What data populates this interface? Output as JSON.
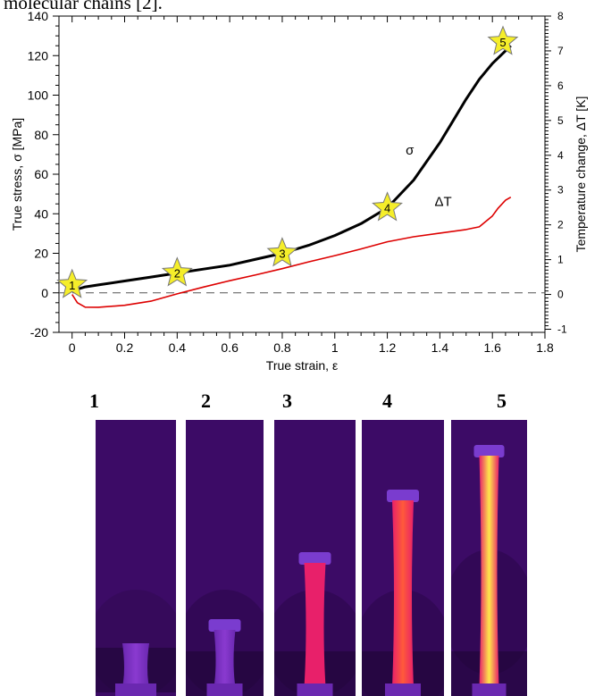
{
  "header_text": "molecular chains [2].",
  "chart_data": {
    "type": "line",
    "xlabel": "True strain, ε",
    "ylabel": "True stress, σ  [MPa]",
    "ylabel_right": "Temperature change, ΔT  [K]",
    "xlim": [
      -0.05,
      1.8
    ],
    "ylim": [
      -20,
      140
    ],
    "ylim_right": [
      -1.09,
      8
    ],
    "x_ticks": [
      "0",
      "0.2",
      "0.4",
      "0.6",
      "0.8",
      "1",
      "1.2",
      "1.4",
      "1.6",
      "1.8"
    ],
    "y_ticks": [
      "-20",
      "0",
      "20",
      "40",
      "60",
      "80",
      "100",
      "120",
      "140"
    ],
    "y_right_ticks": [
      "-1",
      "0",
      "1",
      "2",
      "3",
      "4",
      "5",
      "6",
      "7",
      "8"
    ],
    "series": [
      {
        "name": "σ",
        "axis": "left",
        "color": "#000000",
        "x": [
          0,
          0.05,
          0.1,
          0.2,
          0.3,
          0.4,
          0.5,
          0.6,
          0.7,
          0.8,
          0.9,
          1.0,
          1.1,
          1.2,
          1.3,
          1.4,
          1.45,
          1.5,
          1.55,
          1.6,
          1.67
        ],
        "y": [
          1,
          3,
          4,
          6,
          8,
          10,
          12,
          14,
          17,
          20,
          24,
          29,
          35,
          43,
          57,
          76,
          87,
          98,
          108,
          116,
          125
        ]
      },
      {
        "name": "ΔT",
        "axis": "right",
        "color": "#dd0000",
        "x": [
          0,
          0.02,
          0.05,
          0.1,
          0.2,
          0.3,
          0.4,
          0.5,
          0.6,
          0.7,
          0.8,
          0.9,
          1.0,
          1.1,
          1.2,
          1.3,
          1.4,
          1.5,
          1.55,
          1.6,
          1.62,
          1.65,
          1.67
        ],
        "y": [
          0,
          -0.25,
          -0.38,
          -0.37,
          -0.3,
          -0.18,
          0.02,
          0.2,
          0.38,
          0.56,
          0.75,
          0.95,
          1.12,
          1.3,
          1.5,
          1.65,
          1.77,
          1.88,
          1.95,
          2.25,
          2.45,
          2.7,
          2.8
        ]
      }
    ],
    "annotations": [
      {
        "text": "σ",
        "x": 1.27,
        "y": 70
      },
      {
        "text": "ΔT",
        "x": 1.38,
        "y": 44
      }
    ],
    "markers": [
      {
        "label": "1",
        "x": 0.0,
        "y": 4
      },
      {
        "label": "2",
        "x": 0.4,
        "y": 10
      },
      {
        "label": "3",
        "x": 0.8,
        "y": 20
      },
      {
        "label": "4",
        "x": 1.2,
        "y": 43
      },
      {
        "label": "5",
        "x": 1.64,
        "y": 127
      }
    ],
    "reference_line": {
      "y": 0,
      "style": "dashed"
    }
  },
  "panels": [
    {
      "label": "1",
      "level": 0.0
    },
    {
      "label": "2",
      "level": 0.15
    },
    {
      "label": "3",
      "level": 0.4
    },
    {
      "label": "4",
      "level": 0.7
    },
    {
      "label": "5",
      "level": 1.0
    }
  ],
  "colors": {
    "stress": "#000000",
    "temperature": "#dd0000",
    "marker_fill": "#f5ee2a",
    "thermal_cold": "#3a0a5c",
    "thermal_warm": "#e8206a",
    "thermal_hot": "#ffe84a"
  }
}
